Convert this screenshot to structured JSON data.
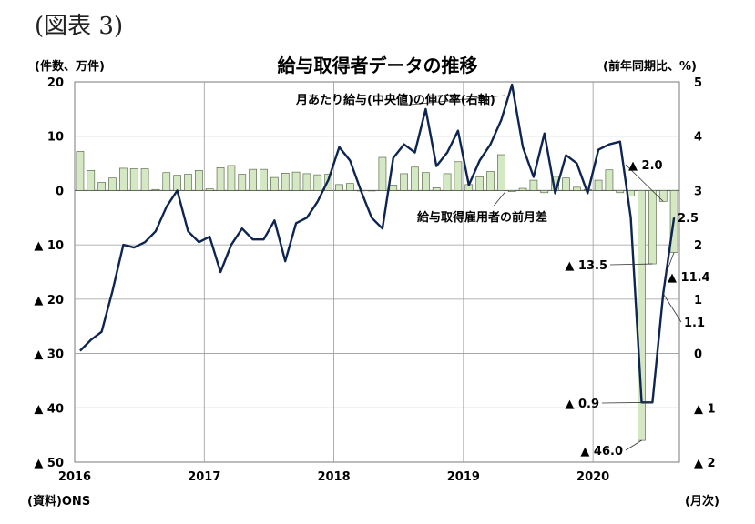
{
  "figure_label": "(図表 3)",
  "chart_data": {
    "type": "bar+line",
    "title": "給与取得者データの推移",
    "left_unit": "(件数、万件)",
    "right_unit": "(前年同期比、%)",
    "source": "(資料)ONS",
    "x_unit": "(月次)",
    "left_axis": {
      "ylim": [
        -50,
        20
      ],
      "ticks": [
        20,
        10,
        0,
        -10,
        -20,
        -30,
        -40,
        -50
      ],
      "tick_labels": [
        "20",
        "10",
        "0",
        "▲ 10",
        "▲ 20",
        "▲ 30",
        "▲ 40",
        "▲ 50"
      ]
    },
    "right_axis": {
      "ylim": [
        -2,
        5
      ],
      "ticks": [
        5,
        4,
        3,
        2,
        1,
        0,
        -1,
        -2
      ],
      "tick_labels": [
        "5",
        "4",
        "3",
        "2",
        "1",
        "0",
        "▲ 1",
        "▲ 2"
      ]
    },
    "x_axis": {
      "ticks": [
        0,
        12,
        24,
        36,
        48
      ],
      "tick_labels": [
        "2016",
        "2017",
        "2018",
        "2019",
        "2020"
      ]
    },
    "months_start": "2016-01",
    "series": [
      {
        "name": "給与取得雇用者の前月差",
        "type": "bar",
        "color": "#d4e8c4",
        "stroke": "#4a5a3a",
        "values": [
          7.2,
          3.7,
          1.5,
          2.3,
          4.1,
          4.0,
          4.0,
          0.2,
          3.3,
          2.8,
          3.0,
          3.7,
          0.3,
          4.2,
          4.6,
          3.0,
          3.9,
          3.9,
          2.4,
          3.2,
          3.4,
          3.1,
          2.9,
          3.0,
          1.1,
          1.3,
          0,
          0,
          6.1,
          1.0,
          3.1,
          4.3,
          3.3,
          0.5,
          3.1,
          5.3,
          1.1,
          2.5,
          3.5,
          6.6,
          -0.2,
          0.4,
          1.9,
          -0.4,
          2.6,
          2.3,
          0.6,
          0.2,
          1.9,
          3.8,
          -0.4,
          -1.0,
          -46.0,
          -13.5,
          -2.0,
          -11.4
        ]
      },
      {
        "name": "月あたり給与(中央値)の伸び率(右軸)",
        "type": "line",
        "color": "#0d2550",
        "values": [
          0.05,
          0.25,
          0.4,
          1.15,
          2.0,
          1.95,
          2.05,
          2.25,
          2.7,
          3.0,
          2.25,
          2.05,
          2.15,
          1.5,
          2.0,
          2.3,
          2.1,
          2.1,
          2.45,
          1.7,
          2.4,
          2.5,
          2.8,
          3.2,
          3.8,
          3.55,
          3.0,
          2.5,
          2.3,
          3.6,
          3.85,
          3.7,
          4.5,
          3.45,
          3.7,
          4.1,
          3.1,
          3.55,
          3.85,
          4.3,
          4.95,
          3.8,
          3.25,
          4.05,
          2.95,
          3.65,
          3.5,
          2.95,
          3.75,
          3.85,
          3.9,
          2.5,
          -0.9,
          -0.9,
          1.1,
          2.5
        ]
      }
    ],
    "annotations": [
      {
        "text": "▲ 2.0",
        "month": 54,
        "series": "bar"
      },
      {
        "text": "▲ 13.5",
        "month": 53,
        "series": "bar"
      },
      {
        "text": "▲ 11.4",
        "month": 55,
        "series": "bar"
      },
      {
        "text": "▲ 46.0",
        "month": 52,
        "series": "bar"
      },
      {
        "text": "2.5",
        "month": 55,
        "series": "line"
      },
      {
        "text": "1.1",
        "month": 54,
        "series": "line"
      },
      {
        "text": "▲ 0.9",
        "month": 53,
        "series": "line"
      }
    ]
  }
}
